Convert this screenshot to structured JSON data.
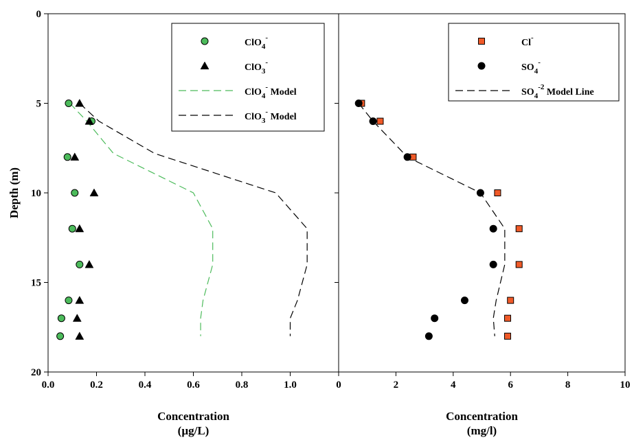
{
  "chart_data": [
    {
      "type": "scatter",
      "panel": "left",
      "title": "",
      "xlabel": "Concentration",
      "xunit": "(µg/L)",
      "ylabel": "Depth (m)",
      "xlim": [
        0,
        1.2
      ],
      "ylim": [
        0,
        20
      ],
      "y_inverted": true,
      "x_ticks": [
        0.0,
        0.2,
        0.4,
        0.6,
        0.8,
        1.0
      ],
      "x_tick_labels": [
        "0.0",
        "0.2",
        "0.4",
        "0.6",
        "0.8",
        "1.0"
      ],
      "y_ticks": [
        0,
        5,
        10,
        15,
        20
      ],
      "y_tick_labels": [
        "0",
        "5",
        "10",
        "15",
        "20"
      ],
      "legend_position": "top-right",
      "grid": false,
      "series": [
        {
          "name": "ClO4-",
          "label_base": "ClO",
          "label_sub": "4",
          "label_sup": "-",
          "label_suffix": "",
          "kind": "points",
          "marker": "circle",
          "color": "#4cbb5b",
          "x": [
            0.085,
            0.18,
            0.08,
            0.11,
            0.1,
            0.13,
            0.085,
            0.055,
            0.05
          ],
          "y": [
            5,
            6,
            8,
            10,
            12,
            14,
            16,
            17,
            18
          ]
        },
        {
          "name": "ClO3-",
          "label_base": "ClO",
          "label_sub": "3",
          "label_sup": "-",
          "label_suffix": "",
          "kind": "points",
          "marker": "triangle",
          "color": "#000000",
          "x": [
            0.13,
            0.17,
            0.11,
            0.19,
            0.13,
            0.17,
            0.13,
            0.12,
            0.13
          ],
          "y": [
            5,
            6,
            8,
            10,
            12,
            14,
            16,
            17,
            18
          ]
        },
        {
          "name": "ClO4- Model",
          "label_base": "ClO",
          "label_sub": "4",
          "label_sup": "-",
          "label_suffix": " Model",
          "kind": "line",
          "dash": "long",
          "color": "#4cbb5b",
          "x": [
            0.09,
            0.16,
            0.27,
            0.6,
            0.68,
            0.68,
            0.64,
            0.63,
            0.63
          ],
          "y": [
            5,
            6,
            7.8,
            10,
            12,
            14,
            16,
            17,
            18
          ]
        },
        {
          "name": "ClO3- Model",
          "label_base": "ClO",
          "label_sub": "3",
          "label_sup": "-",
          "label_suffix": " Model",
          "kind": "line",
          "dash": "long",
          "color": "#000000",
          "x": [
            0.13,
            0.21,
            0.44,
            0.94,
            1.07,
            1.07,
            1.03,
            1.0,
            1.0
          ],
          "y": [
            5,
            6,
            7.8,
            10,
            12,
            14,
            16,
            17,
            18
          ]
        }
      ]
    },
    {
      "type": "scatter",
      "panel": "right",
      "title": "",
      "xlabel": "Concentration",
      "xunit": "(mg/l)",
      "ylabel": "",
      "xlim": [
        0,
        10
      ],
      "ylim": [
        0,
        20
      ],
      "y_inverted": true,
      "x_ticks": [
        0,
        2,
        4,
        6,
        8,
        10
      ],
      "x_tick_labels": [
        "0",
        "2",
        "4",
        "6",
        "8",
        "10"
      ],
      "legend_position": "top-right",
      "grid": false,
      "series": [
        {
          "name": "Cl-",
          "label_base": "Cl",
          "label_sub": "",
          "label_sup": "-",
          "label_suffix": "",
          "kind": "points",
          "marker": "square",
          "color": "#f05a28",
          "x": [
            0.8,
            1.45,
            2.6,
            5.55,
            6.3,
            6.3,
            6.0,
            5.9,
            5.9
          ],
          "y": [
            5,
            6,
            8,
            10,
            12,
            14,
            16,
            17,
            18
          ]
        },
        {
          "name": "SO4-",
          "label_base": "SO",
          "label_sub": "4",
          "label_sup": "-",
          "label_suffix": "",
          "kind": "points",
          "marker": "circle",
          "color": "#000000",
          "x": [
            0.7,
            1.2,
            2.4,
            4.95,
            5.4,
            5.4,
            4.4,
            3.35,
            3.15
          ],
          "y": [
            5,
            6,
            8,
            10,
            12,
            14,
            16,
            17,
            18
          ]
        },
        {
          "name": "SO4-2 Model Line",
          "label_base": "SO",
          "label_sub": "4",
          "label_sup": "-2",
          "label_suffix": " Model Line",
          "kind": "line",
          "dash": "long",
          "color": "#000000",
          "x": [
            0.7,
            1.2,
            2.4,
            4.95,
            5.8,
            5.8,
            5.5,
            5.4,
            5.45
          ],
          "y": [
            5,
            6,
            8,
            10,
            12,
            14,
            16,
            17,
            18
          ]
        }
      ]
    }
  ]
}
